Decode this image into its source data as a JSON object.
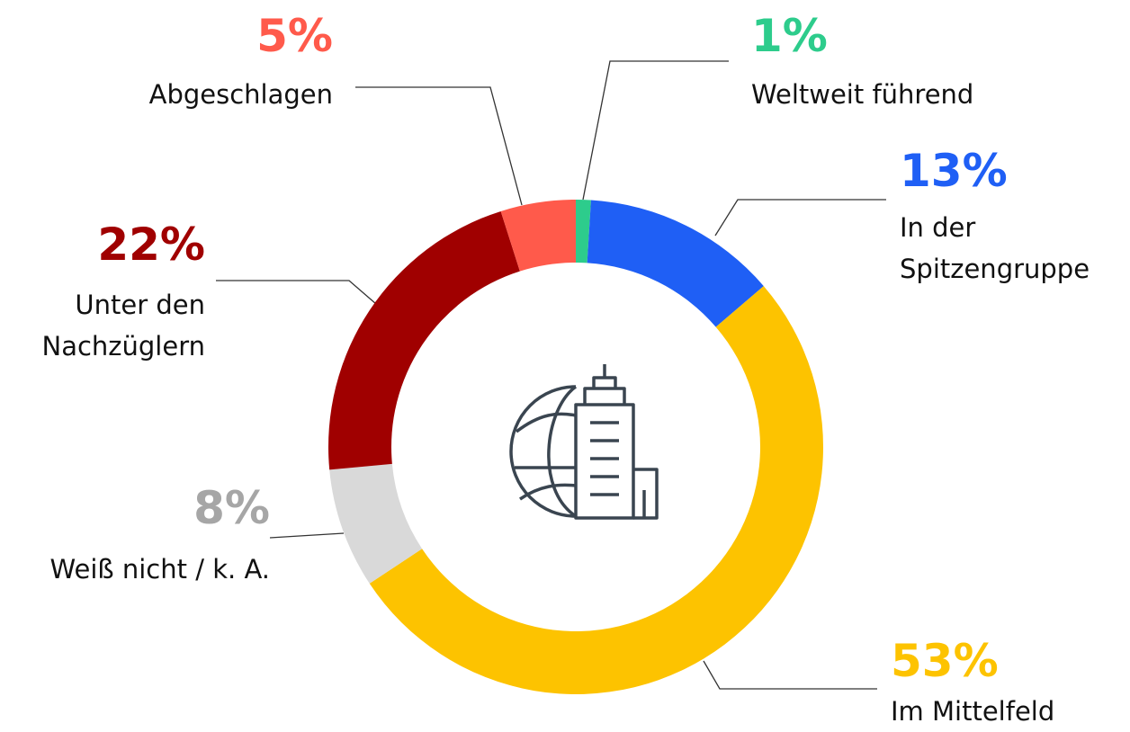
{
  "chart_data": {
    "type": "donut",
    "categories": [
      "Weltweit führend",
      "In der Spitzengruppe",
      "Im Mittelfeld",
      "Weiß nicht / k. A.",
      "Unter den Nachzüglern",
      "Abgeschlagen"
    ],
    "values": [
      1,
      13,
      53,
      8,
      22,
      5
    ],
    "value_labels": [
      "1%",
      "13%",
      "53%",
      "8%",
      "22%",
      "5%"
    ],
    "colors": [
      "#2dcc8c",
      "#1f5ff5",
      "#fdc300",
      "#d9d9d9",
      "#a00000",
      "#ff5a4b"
    ]
  }
}
